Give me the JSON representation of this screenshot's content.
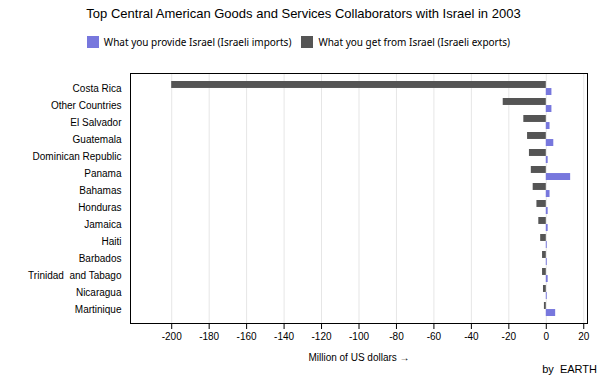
{
  "chart_data": {
    "type": "bar",
    "orientation": "horizontal",
    "title": "Top Central American Goods and Services Collaborators with Israel in 2003",
    "x_label": "Million of US dollars",
    "categories": [
      "Costa Rica",
      "Other Countries",
      "El Salvador",
      "Guatemala",
      "Dominican Republic",
      "Panama",
      "Bahamas",
      "Honduras",
      "Jamaica",
      "Haiti",
      "Barbados",
      "Trinidad  and Tabago",
      "Nicaragua",
      "Martinique"
    ],
    "series": [
      {
        "name": "What you provide Israel (Israeli imports)",
        "color": "#7777dd",
        "values": [
          3,
          3,
          2,
          4,
          1,
          13,
          2,
          1,
          1,
          0.5,
          0.5,
          1,
          0.5,
          5
        ]
      },
      {
        "name": "What you get from Israel (Israeli exports)",
        "color": "#555555",
        "values": [
          -200,
          -23,
          -12,
          -10,
          -9,
          -8,
          -7,
          -5,
          -4,
          -3,
          -2,
          -2,
          -1.5,
          -1
        ]
      }
    ],
    "xlim": [
      -222,
      22
    ],
    "xticks": [
      -200,
      -180,
      -160,
      -140,
      -120,
      -100,
      -80,
      -60,
      -40,
      -20,
      0,
      20
    ],
    "grid": true,
    "legend": "top",
    "annotations": [
      {
        "text": "by  EARTH"
      }
    ]
  }
}
